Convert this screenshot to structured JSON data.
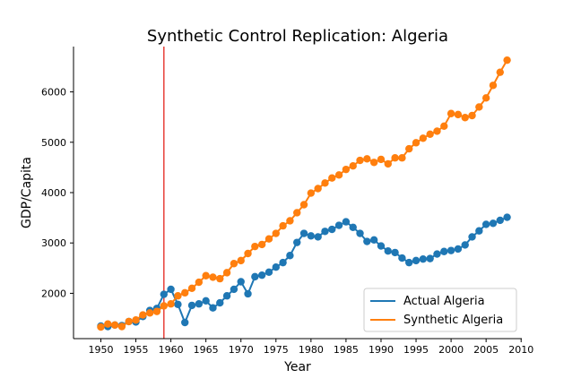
{
  "chart_data": {
    "type": "line",
    "title": "Synthetic Control Replication: Algeria",
    "xlabel": "Year",
    "ylabel": "GDP/Capita",
    "xlim": [
      1946.1,
      2010.1
    ],
    "ylim": [
      1100,
      6900
    ],
    "xticks": [
      1950,
      1955,
      1960,
      1965,
      1970,
      1975,
      1980,
      1985,
      1990,
      1995,
      2000,
      2005,
      2010
    ],
    "yticks": [
      2000,
      3000,
      4000,
      5000,
      6000
    ],
    "grid": false,
    "legend_position": "lower-right",
    "vline": {
      "x": 1959,
      "color": "#e8413a"
    },
    "x": [
      1950,
      1951,
      1952,
      1953,
      1954,
      1955,
      1956,
      1957,
      1958,
      1959,
      1960,
      1961,
      1962,
      1963,
      1964,
      1965,
      1966,
      1967,
      1968,
      1969,
      1970,
      1971,
      1972,
      1973,
      1974,
      1975,
      1976,
      1977,
      1978,
      1979,
      1980,
      1981,
      1982,
      1983,
      1984,
      1985,
      1986,
      1987,
      1988,
      1989,
      1990,
      1991,
      1992,
      1993,
      1994,
      1995,
      1996,
      1997,
      1998,
      1999,
      2000,
      2001,
      2002,
      2003,
      2004,
      2005,
      2006,
      2007,
      2008
    ],
    "series": [
      {
        "name": "Actual Algeria",
        "color": "#1f77b4",
        "values": [
          1350,
          1340,
          1370,
          1360,
          1440,
          1430,
          1540,
          1660,
          1700,
          1980,
          2080,
          1780,
          1420,
          1760,
          1790,
          1850,
          1710,
          1810,
          1950,
          2080,
          2230,
          1990,
          2330,
          2360,
          2420,
          2520,
          2610,
          2750,
          3010,
          3190,
          3140,
          3120,
          3230,
          3270,
          3350,
          3420,
          3310,
          3190,
          3030,
          3060,
          2940,
          2840,
          2810,
          2700,
          2610,
          2650,
          2680,
          2690,
          2780,
          2830,
          2850,
          2880,
          2960,
          3120,
          3240,
          3370,
          3390,
          3450,
          3510
        ]
      },
      {
        "name": "Synthetic Algeria",
        "color": "#ff7f0e",
        "values": [
          1330,
          1390,
          1370,
          1340,
          1440,
          1470,
          1570,
          1610,
          1640,
          1750,
          1790,
          1950,
          2010,
          2100,
          2220,
          2350,
          2320,
          2290,
          2410,
          2590,
          2650,
          2790,
          2930,
          2970,
          3080,
          3190,
          3340,
          3440,
          3600,
          3760,
          3990,
          4080,
          4190,
          4290,
          4350,
          4460,
          4530,
          4640,
          4670,
          4600,
          4660,
          4570,
          4690,
          4690,
          4870,
          4990,
          5080,
          5160,
          5220,
          5320,
          5570,
          5550,
          5490,
          5530,
          5700,
          5880,
          6130,
          6390,
          6630
        ]
      }
    ]
  }
}
